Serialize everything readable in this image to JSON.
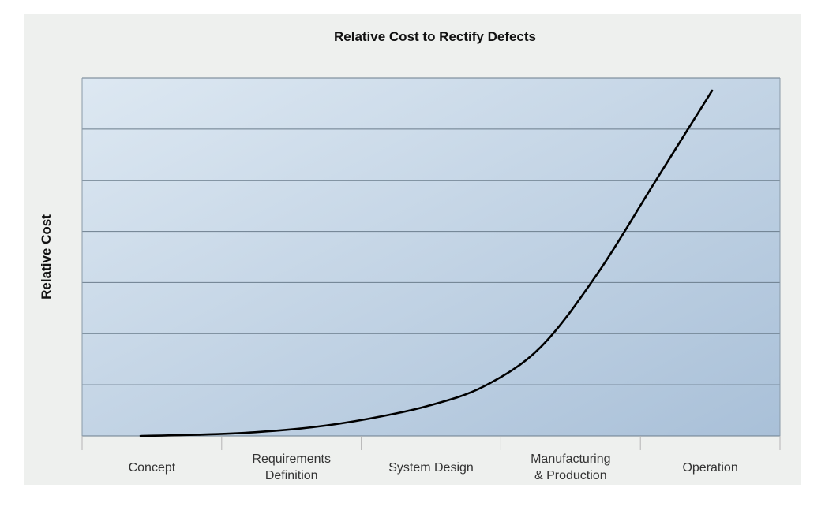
{
  "chart_data": {
    "type": "line",
    "title": "Relative Cost to Rectify Defects",
    "xlabel": "",
    "ylabel": "Relative Cost",
    "categories": [
      [
        "Concept"
      ],
      [
        "Requirements",
        "Definition"
      ],
      [
        "System Design"
      ],
      [
        "Manufacturing",
        "& Production"
      ],
      [
        "Operation"
      ]
    ],
    "x": [
      0.0,
      0.5,
      1.0,
      1.5,
      2.0,
      2.5,
      3.0,
      3.5,
      4.0,
      4.5,
      5.0
    ],
    "y": [
      0.0,
      0.05,
      0.15,
      0.35,
      0.7,
      1.2,
      2.0,
      3.6,
      6.6,
      10.3,
      14.0
    ],
    "xlim": [
      0,
      5
    ],
    "ylim": [
      0,
      14
    ],
    "y_gridlines": 7,
    "y_tick_labels": false,
    "grid": true,
    "legend": false,
    "colors": {
      "line": "#000000",
      "plot_bg_light": "#dde8f2",
      "plot_bg_dark": "#a9c0d8",
      "grid": "#6b7d8c",
      "figure_bg": "#eef0ee"
    }
  }
}
